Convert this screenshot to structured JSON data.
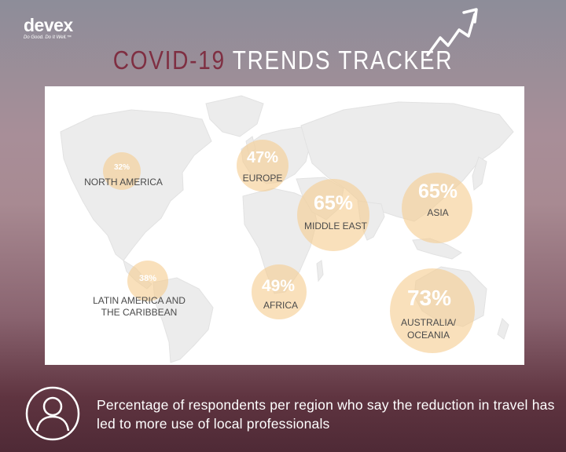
{
  "brand": {
    "name": "devex",
    "tagline": "Do Good. Do It Well.™"
  },
  "title": {
    "part1": "COVID-19",
    "part2": "TRENDS TRACKER"
  },
  "colors": {
    "title_accent": "#7f2f42",
    "bubble": "#f5cd91",
    "panel": "#ffffff",
    "land": "#ececec"
  },
  "icons": {
    "trend": "trend-up-arrow-icon",
    "respondent": "person-circle-icon"
  },
  "chart_data": {
    "type": "bubble-map",
    "unit": "%",
    "regions": [
      {
        "name": "NORTH AMERICA",
        "value": 32,
        "value_label": "32%"
      },
      {
        "name": "EUROPE",
        "value": 47,
        "value_label": "47%"
      },
      {
        "name": "MIDDLE EAST",
        "value": 65,
        "value_label": "65%"
      },
      {
        "name": "ASIA",
        "value": 65,
        "value_label": "65%"
      },
      {
        "name": "LATIN AMERICA AND THE CARIBBEAN",
        "name_lines": [
          "LATIN AMERICA AND",
          "THE CARIBBEAN"
        ],
        "value": 38,
        "value_label": "38%"
      },
      {
        "name": "AFRICA",
        "value": 49,
        "value_label": "49%"
      },
      {
        "name": "AUSTRALIA/ OCEANIA",
        "name_lines": [
          "AUSTRALIA/",
          "OCEANIA"
        ],
        "value": 73,
        "value_label": "73%"
      }
    ]
  },
  "footer": {
    "text": "Percentage of respondents per region who say the reduction in travel has led to more use of local professionals"
  }
}
